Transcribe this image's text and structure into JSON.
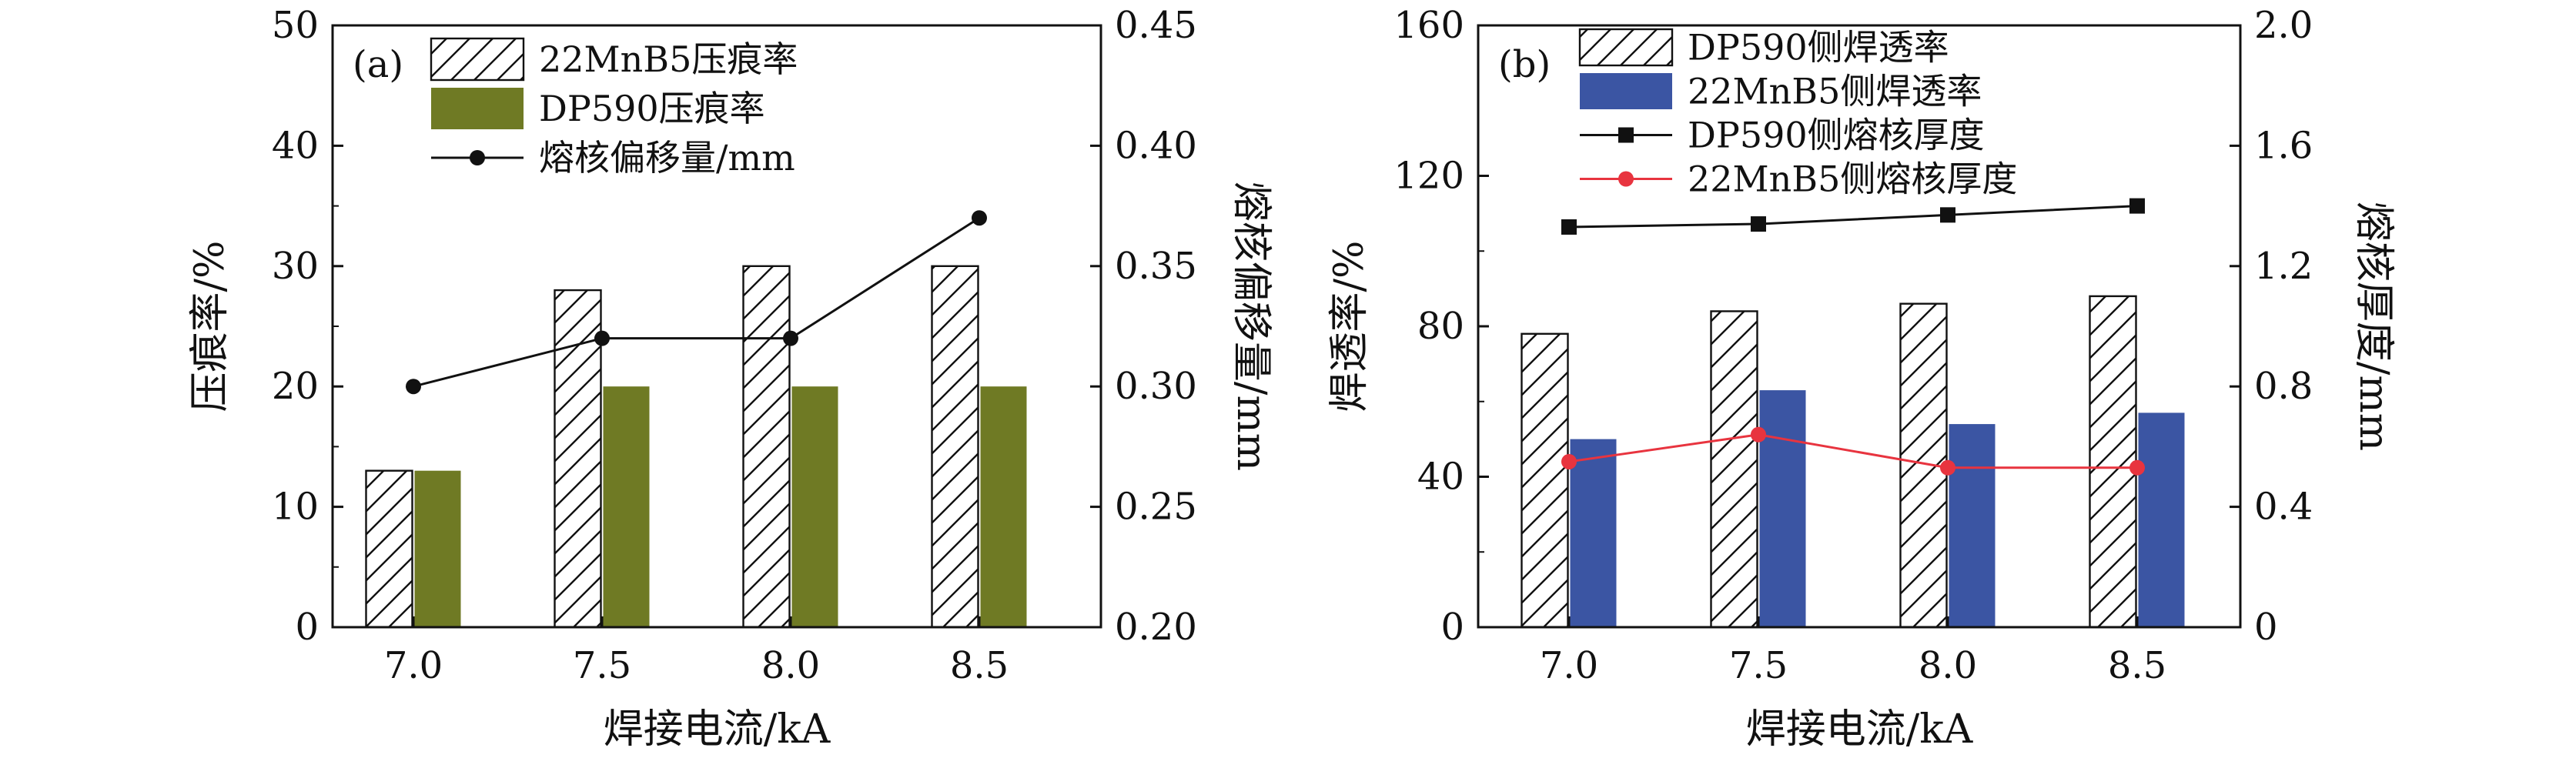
{
  "colors": {
    "bar_hatch_stroke": "#111111",
    "bar_green": "#6f7a24",
    "bar_blue": "#3b55a3",
    "line_black": "#111111",
    "line_red": "#e8343f",
    "marker_red": "#e8343f"
  },
  "chart_data": [
    {
      "type": "bar",
      "panel_label": "(a)",
      "categories": [
        "7.0",
        "7.5",
        "8.0",
        "8.5"
      ],
      "xlabel": "焊接电流/kA",
      "ylabel": "压痕率/%",
      "ylim": [
        0,
        50
      ],
      "yticks": [
        "0",
        "10",
        "20",
        "30",
        "40",
        "50"
      ],
      "y2label": "熔核偏移量/mm",
      "y2lim": [
        0.2,
        0.45
      ],
      "y2ticks": [
        "0.20",
        "0.25",
        "0.30",
        "0.35",
        "0.40",
        "0.45"
      ],
      "legend_position": "top-left",
      "series": [
        {
          "name": "22MnB5压痕率",
          "kind": "bar",
          "style": "hatch",
          "axis": "left",
          "values": [
            13,
            28,
            30,
            30
          ]
        },
        {
          "name": "DP590压痕率",
          "kind": "bar",
          "style": "green",
          "axis": "left",
          "values": [
            13,
            20,
            20,
            20
          ]
        },
        {
          "name": "熔核偏移量/mm",
          "kind": "line",
          "marker": "circle",
          "color": "black",
          "axis": "right",
          "values": [
            0.3,
            0.32,
            0.32,
            0.37
          ]
        }
      ]
    },
    {
      "type": "bar",
      "panel_label": "(b)",
      "categories": [
        "7.0",
        "7.5",
        "8.0",
        "8.5"
      ],
      "xlabel": "焊接电流/kA",
      "ylabel": "焊透率/%",
      "ylim": [
        0,
        160
      ],
      "yticks": [
        "0",
        "40",
        "80",
        "120",
        "160"
      ],
      "y2label": "熔核厚度/mm",
      "y2lim": [
        0,
        2.0
      ],
      "y2ticks": [
        "0",
        "0.4",
        "0.8",
        "1.2",
        "1.6",
        "2.0"
      ],
      "legend_position": "top-left",
      "series": [
        {
          "name": "DP590侧焊透率",
          "kind": "bar",
          "style": "hatch",
          "axis": "left",
          "values": [
            78,
            84,
            86,
            88
          ]
        },
        {
          "name": "22MnB5侧焊透率",
          "kind": "bar",
          "style": "blue",
          "axis": "left",
          "values": [
            50,
            63,
            54,
            57
          ]
        },
        {
          "name": "DP590侧熔核厚度",
          "kind": "line",
          "marker": "square",
          "color": "black",
          "axis": "right",
          "values": [
            1.33,
            1.34,
            1.37,
            1.4
          ]
        },
        {
          "name": "22MnB5侧熔核厚度",
          "kind": "line",
          "marker": "circle",
          "color": "red",
          "axis": "right",
          "values": [
            0.55,
            0.64,
            0.53,
            0.53
          ]
        }
      ]
    }
  ]
}
